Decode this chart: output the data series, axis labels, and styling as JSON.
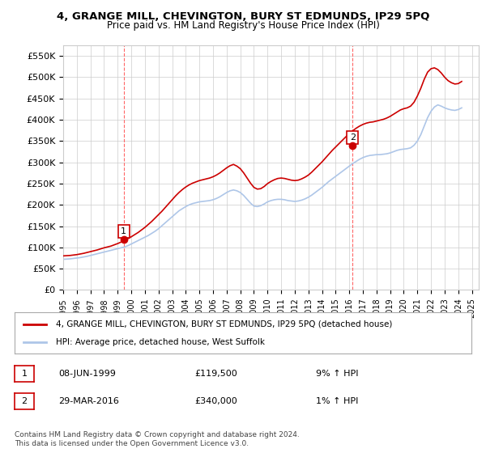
{
  "title": "4, GRANGE MILL, CHEVINGTON, BURY ST EDMUNDS, IP29 5PQ",
  "subtitle": "Price paid vs. HM Land Registry's House Price Index (HPI)",
  "xmin": 1995.0,
  "xmax": 2025.5,
  "ymin": 0,
  "ymax": 575000,
  "yticks": [
    0,
    50000,
    100000,
    150000,
    200000,
    250000,
    300000,
    350000,
    400000,
    450000,
    500000,
    550000
  ],
  "ytick_labels": [
    "£0",
    "£50K",
    "£100K",
    "£150K",
    "£200K",
    "£250K",
    "£300K",
    "£350K",
    "£400K",
    "£450K",
    "£500K",
    "£550K"
  ],
  "xticks": [
    1995,
    1996,
    1997,
    1998,
    1999,
    2000,
    2001,
    2002,
    2003,
    2004,
    2005,
    2006,
    2007,
    2008,
    2009,
    2010,
    2011,
    2012,
    2013,
    2014,
    2015,
    2016,
    2017,
    2018,
    2019,
    2020,
    2021,
    2022,
    2023,
    2024,
    2025
  ],
  "sale1_x": 1999.44,
  "sale1_y": 119500,
  "sale1_label": "1",
  "sale2_x": 2016.24,
  "sale2_y": 340000,
  "sale2_label": "2",
  "hpi_line_color": "#aec6e8",
  "price_line_color": "#cc0000",
  "sale_marker_color": "#cc0000",
  "vline_color": "#ff6666",
  "background_color": "#ffffff",
  "grid_color": "#cccccc",
  "legend_label1": "4, GRANGE MILL, CHEVINGTON, BURY ST EDMUNDS, IP29 5PQ (detached house)",
  "legend_label2": "HPI: Average price, detached house, West Suffolk",
  "table_rows": [
    {
      "num": "1",
      "date": "08-JUN-1999",
      "price": "£119,500",
      "hpi": "9% ↑ HPI"
    },
    {
      "num": "2",
      "date": "29-MAR-2016",
      "price": "£340,000",
      "hpi": "1% ↑ HPI"
    }
  ],
  "footnote": "Contains HM Land Registry data © Crown copyright and database right 2024.\nThis data is licensed under the Open Government Licence v3.0.",
  "hpi_data_x": [
    1995.0,
    1995.25,
    1995.5,
    1995.75,
    1996.0,
    1996.25,
    1996.5,
    1996.75,
    1997.0,
    1997.25,
    1997.5,
    1997.75,
    1998.0,
    1998.25,
    1998.5,
    1998.75,
    1999.0,
    1999.25,
    1999.5,
    1999.75,
    2000.0,
    2000.25,
    2000.5,
    2000.75,
    2001.0,
    2001.25,
    2001.5,
    2001.75,
    2002.0,
    2002.25,
    2002.5,
    2002.75,
    2003.0,
    2003.25,
    2003.5,
    2003.75,
    2004.0,
    2004.25,
    2004.5,
    2004.75,
    2005.0,
    2005.25,
    2005.5,
    2005.75,
    2006.0,
    2006.25,
    2006.5,
    2006.75,
    2007.0,
    2007.25,
    2007.5,
    2007.75,
    2008.0,
    2008.25,
    2008.5,
    2008.75,
    2009.0,
    2009.25,
    2009.5,
    2009.75,
    2010.0,
    2010.25,
    2010.5,
    2010.75,
    2011.0,
    2011.25,
    2011.5,
    2011.75,
    2012.0,
    2012.25,
    2012.5,
    2012.75,
    2013.0,
    2013.25,
    2013.5,
    2013.75,
    2014.0,
    2014.25,
    2014.5,
    2014.75,
    2015.0,
    2015.25,
    2015.5,
    2015.75,
    2016.0,
    2016.25,
    2016.5,
    2016.75,
    2017.0,
    2017.25,
    2017.5,
    2017.75,
    2018.0,
    2018.25,
    2018.5,
    2018.75,
    2019.0,
    2019.25,
    2019.5,
    2019.75,
    2020.0,
    2020.25,
    2020.5,
    2020.75,
    2021.0,
    2021.25,
    2021.5,
    2021.75,
    2022.0,
    2022.25,
    2022.5,
    2022.75,
    2023.0,
    2023.25,
    2023.5,
    2023.75,
    2024.0,
    2024.25
  ],
  "hpi_data_y": [
    72000,
    72500,
    73000,
    74000,
    75000,
    76000,
    77500,
    79000,
    81000,
    83000,
    85000,
    87000,
    89000,
    91000,
    93000,
    95000,
    97000,
    99000,
    101000,
    104000,
    108000,
    112000,
    116000,
    120000,
    124000,
    128000,
    133000,
    138000,
    144000,
    151000,
    158000,
    165000,
    172000,
    179000,
    186000,
    191000,
    196000,
    200000,
    203000,
    205000,
    207000,
    208000,
    209000,
    210000,
    212000,
    215000,
    219000,
    224000,
    229000,
    233000,
    235000,
    233000,
    229000,
    222000,
    213000,
    204000,
    197000,
    196000,
    198000,
    202000,
    207000,
    210000,
    212000,
    213000,
    213000,
    212000,
    210000,
    209000,
    208000,
    209000,
    211000,
    214000,
    218000,
    223000,
    229000,
    235000,
    241000,
    248000,
    255000,
    261000,
    267000,
    273000,
    279000,
    285000,
    291000,
    297000,
    302000,
    307000,
    311000,
    314000,
    316000,
    317000,
    318000,
    318000,
    319000,
    320000,
    322000,
    325000,
    328000,
    330000,
    331000,
    332000,
    334000,
    340000,
    350000,
    365000,
    385000,
    405000,
    420000,
    430000,
    435000,
    432000,
    428000,
    425000,
    423000,
    422000,
    424000,
    428000
  ],
  "price_data_x": [
    1995.0,
    1995.25,
    1995.5,
    1995.75,
    1996.0,
    1996.25,
    1996.5,
    1996.75,
    1997.0,
    1997.25,
    1997.5,
    1997.75,
    1998.0,
    1998.25,
    1998.5,
    1998.75,
    1999.0,
    1999.25,
    1999.5,
    1999.75,
    2000.0,
    2000.25,
    2000.5,
    2000.75,
    2001.0,
    2001.25,
    2001.5,
    2001.75,
    2002.0,
    2002.25,
    2002.5,
    2002.75,
    2003.0,
    2003.25,
    2003.5,
    2003.75,
    2004.0,
    2004.25,
    2004.5,
    2004.75,
    2005.0,
    2005.25,
    2005.5,
    2005.75,
    2006.0,
    2006.25,
    2006.5,
    2006.75,
    2007.0,
    2007.25,
    2007.5,
    2007.75,
    2008.0,
    2008.25,
    2008.5,
    2008.75,
    2009.0,
    2009.25,
    2009.5,
    2009.75,
    2010.0,
    2010.25,
    2010.5,
    2010.75,
    2011.0,
    2011.25,
    2011.5,
    2011.75,
    2012.0,
    2012.25,
    2012.5,
    2012.75,
    2013.0,
    2013.25,
    2013.5,
    2013.75,
    2014.0,
    2014.25,
    2014.5,
    2014.75,
    2015.0,
    2015.25,
    2015.5,
    2015.75,
    2016.0,
    2016.25,
    2016.5,
    2016.75,
    2017.0,
    2017.25,
    2017.5,
    2017.75,
    2018.0,
    2018.25,
    2018.5,
    2018.75,
    2019.0,
    2019.25,
    2019.5,
    2019.75,
    2020.0,
    2020.25,
    2020.5,
    2020.75,
    2021.0,
    2021.25,
    2021.5,
    2021.75,
    2022.0,
    2022.25,
    2022.5,
    2022.75,
    2023.0,
    2023.25,
    2023.5,
    2023.75,
    2024.0,
    2024.25
  ],
  "price_data_y": [
    80000,
    80500,
    81000,
    82000,
    83000,
    84500,
    86000,
    88000,
    90000,
    92000,
    94000,
    96500,
    99000,
    101000,
    103000,
    106000,
    109000,
    112500,
    116000,
    120500,
    125000,
    130000,
    135000,
    141000,
    147000,
    154000,
    161000,
    169000,
    177000,
    185000,
    194000,
    203000,
    212000,
    221000,
    229000,
    236000,
    242000,
    247000,
    251000,
    254000,
    257000,
    259000,
    261000,
    263000,
    266000,
    270000,
    275000,
    281000,
    287000,
    292000,
    295000,
    291000,
    285000,
    275000,
    263000,
    251000,
    241000,
    237000,
    238000,
    243000,
    250000,
    255000,
    259000,
    262000,
    263000,
    262000,
    260000,
    258000,
    257000,
    258000,
    261000,
    265000,
    270000,
    277000,
    285000,
    293000,
    301000,
    310000,
    319000,
    328000,
    336000,
    344000,
    352000,
    360000,
    367000,
    374000,
    380000,
    385000,
    389000,
    392000,
    394000,
    395000,
    397000,
    399000,
    401000,
    404000,
    408000,
    413000,
    418000,
    423000,
    426000,
    428000,
    432000,
    441000,
    456000,
    474000,
    495000,
    512000,
    520000,
    522000,
    518000,
    510000,
    500000,
    492000,
    487000,
    484000,
    485000,
    490000
  ]
}
